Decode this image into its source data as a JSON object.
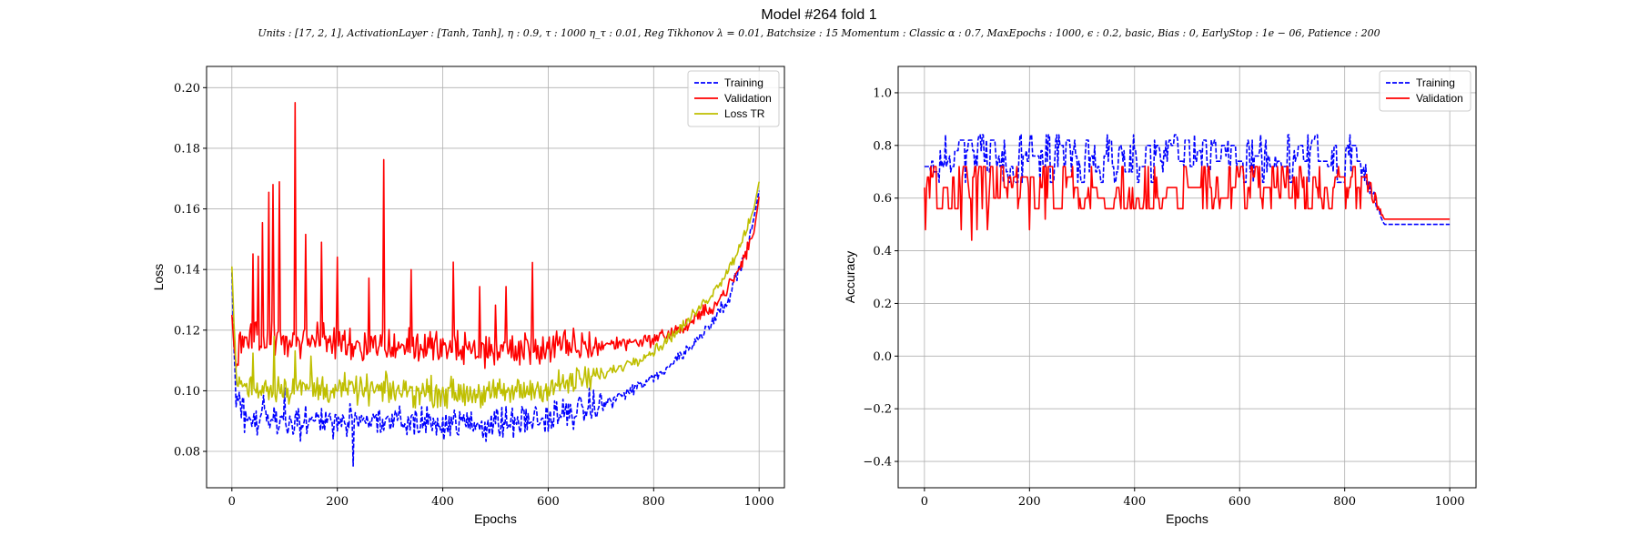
{
  "figure": {
    "title": "Model #264 fold 1",
    "subtitle": "Units : [17, 2, 1], ActivationLayer : [Tanh, Tanh], η : 0.9, τ : 1000 η_τ : 0.01, Reg Tikhonov λ = 0.01, Batchsize : 15 Momentum : Classic α : 0.7, MaxEpochs : 1000, ϵ : 0.2, basic, Bias : 0, EarlyStop : 1e − 06, Patience : 200"
  },
  "chart_data": [
    {
      "type": "line",
      "xlabel": "Epochs",
      "ylabel": "Loss",
      "xlim": [
        -48,
        1048
      ],
      "ylim": [
        0.068,
        0.207
      ],
      "xticks": [
        0,
        200,
        400,
        600,
        800,
        1000
      ],
      "yticks": [
        0.08,
        0.1,
        0.12,
        0.14,
        0.16,
        0.18,
        0.2
      ],
      "ytick_labels": [
        "0.08",
        "0.10",
        "0.12",
        "0.14",
        "0.16",
        "0.18",
        "0.20"
      ],
      "grid": true,
      "legend_position": "top-right",
      "series": [
        {
          "name": "Training",
          "color": "#0000ff",
          "style": "dashed",
          "keypoints": [
            [
              0,
              0.139
            ],
            [
              3,
              0.118
            ],
            [
              8,
              0.098
            ],
            [
              30,
              0.09
            ],
            [
              100,
              0.09
            ],
            [
              300,
              0.09
            ],
            [
              500,
              0.089
            ],
            [
              600,
              0.091
            ],
            [
              700,
              0.095
            ],
            [
              800,
              0.104
            ],
            [
              880,
              0.116
            ],
            [
              940,
              0.13
            ],
            [
              980,
              0.148
            ],
            [
              1000,
              0.166
            ]
          ],
          "noise": 0.0045,
          "spikes": [
            [
              230,
              -0.015
            ],
            [
              60,
              0.012
            ],
            [
              100,
              0.01
            ],
            [
              165,
              0.008
            ]
          ]
        },
        {
          "name": "Validation",
          "color": "#ff0000",
          "style": "solid",
          "keypoints": [
            [
              0,
              0.125
            ],
            [
              5,
              0.112
            ],
            [
              30,
              0.117
            ],
            [
              100,
              0.117
            ],
            [
              300,
              0.115
            ],
            [
              500,
              0.113
            ],
            [
              600,
              0.114
            ],
            [
              700,
              0.115
            ],
            [
              800,
              0.117
            ],
            [
              860,
              0.121
            ],
            [
              920,
              0.129
            ],
            [
              960,
              0.139
            ],
            [
              990,
              0.152
            ],
            [
              1000,
              0.164
            ]
          ],
          "noise": 0.005,
          "spikes": [
            [
              120,
              0.084
            ],
            [
              288,
              0.062
            ],
            [
              70,
              0.052
            ],
            [
              78,
              0.048
            ],
            [
              90,
              0.05
            ],
            [
              58,
              0.04
            ],
            [
              235,
              0.048
            ],
            [
              140,
              0.038
            ],
            [
              170,
              0.035
            ],
            [
              200,
              0.03
            ],
            [
              340,
              0.03
            ],
            [
              365,
              0.026
            ],
            [
              420,
              0.024
            ],
            [
              470,
              0.022
            ],
            [
              520,
              0.022
            ],
            [
              570,
              0.034
            ],
            [
              625,
              0.016
            ],
            [
              40,
              0.03
            ],
            [
              50,
              0.026
            ],
            [
              15,
              0.026
            ],
            [
              500,
              0.018
            ],
            [
              395,
              0.02
            ],
            [
              455,
              0.016
            ],
            [
              260,
              0.022
            ],
            [
              305,
              0.02
            ],
            [
              545,
              0.016
            ]
          ]
        },
        {
          "name": "Loss TR",
          "color": "#bfbf00",
          "style": "solid",
          "keypoints": [
            [
              0,
              0.141
            ],
            [
              4,
              0.122
            ],
            [
              10,
              0.103
            ],
            [
              30,
              0.101
            ],
            [
              100,
              0.101
            ],
            [
              300,
              0.1
            ],
            [
              500,
              0.099
            ],
            [
              600,
              0.101
            ],
            [
              700,
              0.105
            ],
            [
              800,
              0.113
            ],
            [
              860,
              0.122
            ],
            [
              920,
              0.134
            ],
            [
              960,
              0.146
            ],
            [
              990,
              0.16
            ],
            [
              1000,
              0.169
            ]
          ],
          "noise": 0.004,
          "spikes": [
            [
              65,
              0.018
            ],
            [
              80,
              0.016
            ],
            [
              120,
              0.012
            ],
            [
              150,
              0.01
            ],
            [
              40,
              0.01
            ]
          ]
        }
      ]
    },
    {
      "type": "line",
      "xlabel": "Epochs",
      "ylabel": "Accuracy",
      "xlim": [
        -50,
        1050
      ],
      "ylim": [
        -0.5,
        1.1
      ],
      "xticks": [
        0,
        200,
        400,
        600,
        800,
        1000
      ],
      "yticks": [
        -0.4,
        -0.2,
        0.0,
        0.2,
        0.4,
        0.6,
        0.8,
        1.0
      ],
      "ytick_labels": [
        "−0.4",
        "−0.2",
        "0.0",
        "0.2",
        "0.4",
        "0.6",
        "0.8",
        "1.0"
      ],
      "grid": true,
      "legend_position": "top-right",
      "series": [
        {
          "name": "Training",
          "color": "#0000ff",
          "style": "dashed",
          "levels": [
            0.66,
            0.7,
            0.72,
            0.74,
            0.76,
            0.78,
            0.8,
            0.82,
            0.84
          ],
          "active_range": [
            0,
            830
          ],
          "transition_end": 875,
          "final_value": 0.5
        },
        {
          "name": "Validation",
          "color": "#ff0000",
          "style": "solid",
          "levels": [
            0.56,
            0.6,
            0.64,
            0.68,
            0.72
          ],
          "low_spikes": [
            [
              2,
              0.48
            ],
            [
              70,
              0.48
            ],
            [
              75,
              0.48
            ],
            [
              90,
              0.44
            ],
            [
              100,
              0.48
            ],
            [
              120,
              0.48
            ],
            [
              145,
              0.44
            ],
            [
              185,
              0.48
            ],
            [
              200,
              0.48
            ],
            [
              230,
              0.52
            ]
          ],
          "active_range": [
            0,
            840
          ],
          "transition_end": 875,
          "final_value": 0.52
        }
      ]
    }
  ]
}
